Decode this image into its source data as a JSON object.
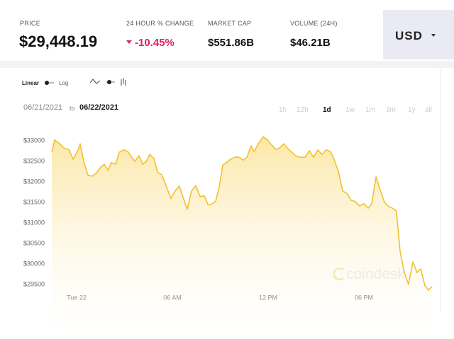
{
  "header": {
    "stats": [
      {
        "label": "PRICE",
        "value": "$29,448.19"
      },
      {
        "label": "24 HOUR % CHANGE",
        "value": "-10.45%"
      },
      {
        "label": "MARKET CAP",
        "value": "$551.86B"
      },
      {
        "label": "VOLUME (24H)",
        "value": "$46.21B"
      }
    ],
    "currency": "USD"
  },
  "controls": {
    "scales": [
      "Linear",
      "Log"
    ],
    "date_from": "06/21/2021",
    "date_separator": "to",
    "date_to": "06/22/2021",
    "ranges": [
      "1h",
      "12h",
      "1d",
      "1w",
      "1m",
      "3m",
      "1y",
      "all"
    ],
    "active_range": "1d"
  },
  "watermark": "coindesk",
  "chart_data": {
    "type": "area",
    "color": "#f2c12e",
    "x": [
      -1.56,
      -1.38,
      -1.07,
      -0.76,
      -0.49,
      -0.22,
      0.09,
      0.22,
      0.44,
      0.71,
      0.98,
      1.24,
      1.51,
      1.73,
      1.96,
      2.18,
      2.44,
      2.67,
      2.93,
      3.2,
      3.42,
      3.64,
      3.91,
      4.13,
      4.36,
      4.58,
      4.84,
      5.07,
      5.33,
      5.6,
      5.91,
      6.18,
      6.44,
      6.67,
      6.93,
      7.2,
      7.47,
      7.73,
      8.0,
      8.22,
      8.44,
      8.71,
      8.93,
      9.16,
      9.42,
      9.64,
      9.91,
      10.18,
      10.44,
      10.67,
      10.93,
      11.11,
      11.38,
      11.69,
      11.96,
      12.22,
      12.49,
      12.76,
      12.98,
      13.24,
      13.51,
      13.78,
      14.04,
      14.31,
      14.58,
      14.84,
      15.11,
      15.38,
      15.64,
      15.91,
      16.13,
      16.4,
      16.67,
      16.93,
      17.2,
      17.47,
      17.73,
      18.0,
      18.27,
      18.49,
      18.76,
      19.02,
      19.29,
      19.56,
      19.78,
      20.04,
      20.27,
      20.53,
      20.8,
      21.07,
      21.33,
      21.56,
      21.82,
      22.04,
      22.27
    ],
    "values": [
      32720,
      33020,
      32930,
      32810,
      32790,
      32550,
      32780,
      32930,
      32500,
      32160,
      32140,
      32220,
      32360,
      32430,
      32280,
      32470,
      32430,
      32720,
      32780,
      32740,
      32620,
      32500,
      32640,
      32430,
      32500,
      32670,
      32570,
      32240,
      32170,
      31910,
      31590,
      31790,
      31900,
      31620,
      31330,
      31780,
      31910,
      31640,
      31660,
      31450,
      31450,
      31530,
      31860,
      32410,
      32480,
      32550,
      32600,
      32600,
      32530,
      32600,
      32880,
      32740,
      32930,
      33100,
      33020,
      32900,
      32790,
      32840,
      32930,
      32810,
      32710,
      32620,
      32600,
      32600,
      32760,
      32600,
      32780,
      32670,
      32780,
      32740,
      32550,
      32260,
      31780,
      31720,
      31550,
      31520,
      31410,
      31470,
      31360,
      31470,
      32120,
      31810,
      31500,
      31400,
      31360,
      31290,
      30310,
      29790,
      29500,
      30050,
      29790,
      29880,
      29480,
      29360,
      29450
    ],
    "xlim": [
      -1.56,
      22.27
    ],
    "xticks": [
      {
        "value": 0,
        "label": "Tue 22"
      },
      {
        "value": 6,
        "label": "06 AM"
      },
      {
        "value": 12,
        "label": "12 PM"
      },
      {
        "value": 18,
        "label": "06 PM"
      }
    ],
    "ylim": [
      29000,
      33250
    ],
    "yticks": [
      {
        "value": 29500,
        "label": "$29500"
      },
      {
        "value": 30000,
        "label": "$30000"
      },
      {
        "value": 30500,
        "label": "$30500"
      },
      {
        "value": 31000,
        "label": "$31000"
      },
      {
        "value": 31500,
        "label": "$31500"
      },
      {
        "value": 32000,
        "label": "$32000"
      },
      {
        "value": 32500,
        "label": "$32500"
      },
      {
        "value": 33000,
        "label": "$33000"
      }
    ]
  }
}
